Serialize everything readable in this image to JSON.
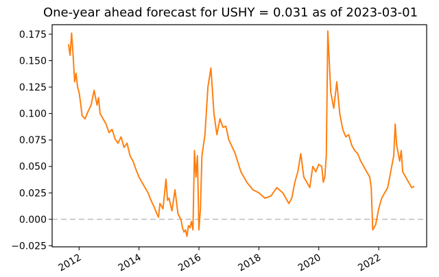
{
  "chart_data": {
    "type": "line",
    "title": "One-year ahead forecast for USHY = 0.031 as of 2023-03-01",
    "xlabel": "",
    "ylabel": "",
    "xlim": [
      2011.1,
      2023.6
    ],
    "ylim": [
      -0.026,
      0.184
    ],
    "x_ticks": [
      2012,
      2014,
      2016,
      2018,
      2020,
      2022
    ],
    "x_tick_labels": [
      "2012",
      "2014",
      "2016",
      "2018",
      "2020",
      "2022"
    ],
    "y_ticks": [
      -0.025,
      0.0,
      0.025,
      0.05,
      0.075,
      0.1,
      0.125,
      0.15,
      0.175
    ],
    "y_tick_labels": [
      "−0.025",
      "0.000",
      "0.025",
      "0.050",
      "0.075",
      "0.100",
      "0.125",
      "0.150",
      "0.175"
    ],
    "grid": false,
    "reference_line": {
      "y": 0.0,
      "style": "dashed",
      "color": "#cccccc"
    },
    "series": [
      {
        "color": "#ff7f0e",
        "x": [
          2011.65,
          2011.7,
          2011.75,
          2011.8,
          2011.85,
          2011.9,
          2011.95,
          2012.0,
          2012.05,
          2012.1,
          2012.2,
          2012.3,
          2012.4,
          2012.5,
          2012.6,
          2012.65,
          2012.7,
          2012.8,
          2012.9,
          2013.0,
          2013.1,
          2013.2,
          2013.3,
          2013.4,
          2013.5,
          2013.6,
          2013.7,
          2013.8,
          2013.9,
          2014.0,
          2014.1,
          2014.2,
          2014.3,
          2014.4,
          2014.5,
          2014.6,
          2014.65,
          2014.7,
          2014.8,
          2014.9,
          2014.95,
          2015.0,
          2015.1,
          2015.2,
          2015.3,
          2015.4,
          2015.45,
          2015.5,
          2015.55,
          2015.6,
          2015.65,
          2015.7,
          2015.75,
          2015.8,
          2015.85,
          2015.9,
          2015.95,
          2016.0,
          2016.05,
          2016.1,
          2016.2,
          2016.3,
          2016.4,
          2016.5,
          2016.6,
          2016.7,
          2016.8,
          2016.9,
          2017.0,
          2017.2,
          2017.4,
          2017.6,
          2017.8,
          2018.0,
          2018.2,
          2018.4,
          2018.6,
          2018.8,
          2018.9,
          2019.0,
          2019.1,
          2019.2,
          2019.3,
          2019.4,
          2019.5,
          2019.6,
          2019.7,
          2019.8,
          2019.9,
          2020.0,
          2020.1,
          2020.15,
          2020.2,
          2020.25,
          2020.3,
          2020.4,
          2020.5,
          2020.6,
          2020.7,
          2020.8,
          2020.9,
          2021.0,
          2021.1,
          2021.2,
          2021.3,
          2021.4,
          2021.5,
          2021.6,
          2021.7,
          2021.75,
          2021.8,
          2021.9,
          2022.0,
          2022.1,
          2022.2,
          2022.3,
          2022.4,
          2022.5,
          2022.55,
          2022.6,
          2022.7,
          2022.75,
          2022.8,
          2022.9,
          2023.0,
          2023.1,
          2023.17
        ],
        "y": [
          0.165,
          0.155,
          0.176,
          0.155,
          0.13,
          0.138,
          0.125,
          0.12,
          0.11,
          0.098,
          0.095,
          0.102,
          0.108,
          0.122,
          0.108,
          0.115,
          0.1,
          0.095,
          0.09,
          0.082,
          0.085,
          0.076,
          0.072,
          0.078,
          0.068,
          0.072,
          0.06,
          0.055,
          0.047,
          0.04,
          0.035,
          0.03,
          0.025,
          0.018,
          0.012,
          0.005,
          0.002,
          0.015,
          0.01,
          0.038,
          0.018,
          0.02,
          0.008,
          0.028,
          0.005,
          0.0,
          -0.008,
          -0.012,
          -0.01,
          -0.016,
          -0.006,
          -0.008,
          -0.002,
          -0.01,
          0.065,
          0.04,
          0.06,
          -0.01,
          0.01,
          0.06,
          0.08,
          0.125,
          0.143,
          0.1,
          0.08,
          0.095,
          0.087,
          0.088,
          0.075,
          0.063,
          0.045,
          0.035,
          0.028,
          0.025,
          0.02,
          0.022,
          0.03,
          0.025,
          0.02,
          0.015,
          0.02,
          0.035,
          0.045,
          0.062,
          0.04,
          0.035,
          0.03,
          0.05,
          0.045,
          0.052,
          0.05,
          0.035,
          0.04,
          0.06,
          0.178,
          0.12,
          0.105,
          0.13,
          0.1,
          0.085,
          0.078,
          0.08,
          0.07,
          0.065,
          0.062,
          0.055,
          0.05,
          0.045,
          0.04,
          0.03,
          -0.01,
          -0.005,
          0.01,
          0.02,
          0.025,
          0.03,
          0.045,
          0.06,
          0.09,
          0.07,
          0.055,
          0.065,
          0.045,
          0.04,
          0.035,
          0.03,
          0.031
        ]
      }
    ]
  }
}
